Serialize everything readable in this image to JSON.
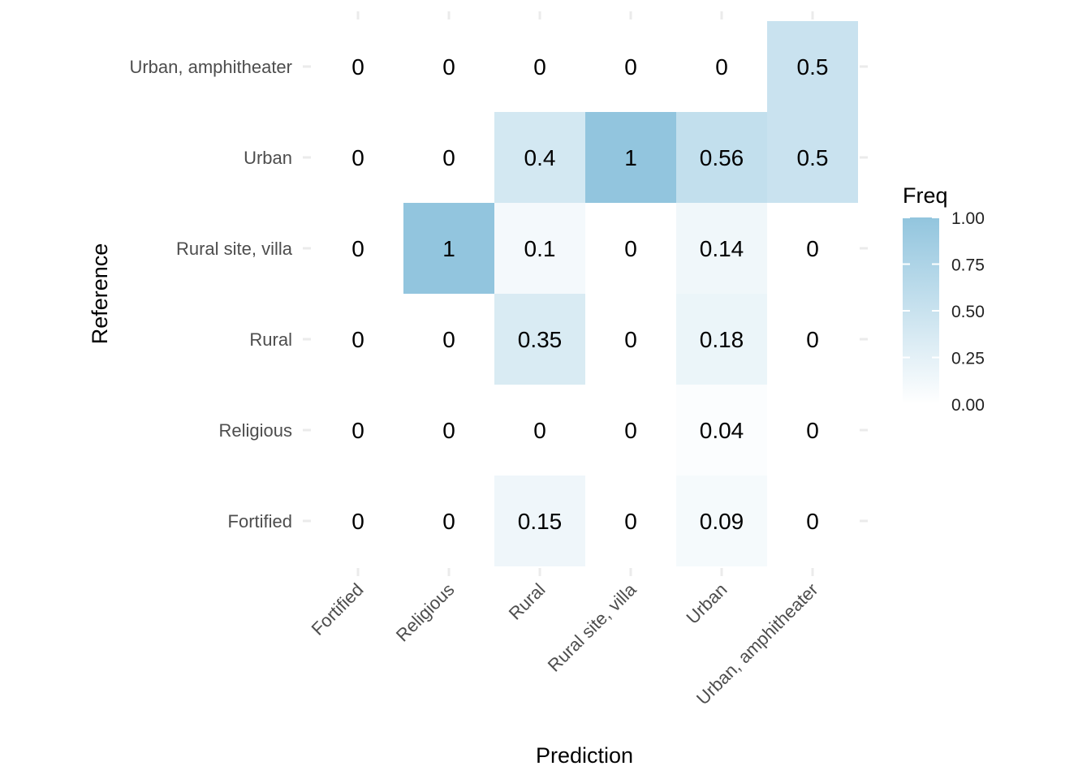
{
  "chart_data": {
    "type": "heatmap",
    "xlabel": "Prediction",
    "ylabel": "Reference",
    "x_categories": [
      "Fortified",
      "Religious",
      "Rural",
      "Rural site, villa",
      "Urban",
      "Urban, amphitheater"
    ],
    "y_categories": [
      "Fortified",
      "Religious",
      "Rural",
      "Rural site, villa",
      "Urban",
      "Urban, amphitheater"
    ],
    "values": [
      [
        0,
        0,
        0.15,
        0,
        0.09,
        0
      ],
      [
        0,
        0,
        0,
        0,
        0.04,
        0
      ],
      [
        0,
        0,
        0.35,
        0,
        0.18,
        0
      ],
      [
        0,
        1,
        0.1,
        0,
        0.14,
        0
      ],
      [
        0,
        0,
        0.4,
        1,
        0.56,
        0.5
      ],
      [
        0,
        0,
        0,
        0,
        0,
        0.5
      ]
    ],
    "labels": [
      [
        "0",
        "0",
        "0.15",
        "0",
        "0.09",
        "0"
      ],
      [
        "0",
        "0",
        "0",
        "0",
        "0.04",
        "0"
      ],
      [
        "0",
        "0",
        "0.35",
        "0",
        "0.18",
        "0"
      ],
      [
        "0",
        "1",
        "0.1",
        "0",
        "0.14",
        "0"
      ],
      [
        "0",
        "0",
        "0.4",
        "1",
        "0.56",
        "0.5"
      ],
      [
        "0",
        "0",
        "0",
        "0",
        "0",
        "0.5"
      ]
    ],
    "legend": {
      "title": "Freq",
      "breaks": [
        1.0,
        0.75,
        0.5,
        0.25,
        0.0
      ],
      "labels": [
        "1.00",
        "0.75",
        "0.50",
        "0.25",
        "0.00"
      ],
      "placement": "right"
    },
    "color_low": "#ffffff",
    "color_high": "#92c5de",
    "grid": true
  }
}
